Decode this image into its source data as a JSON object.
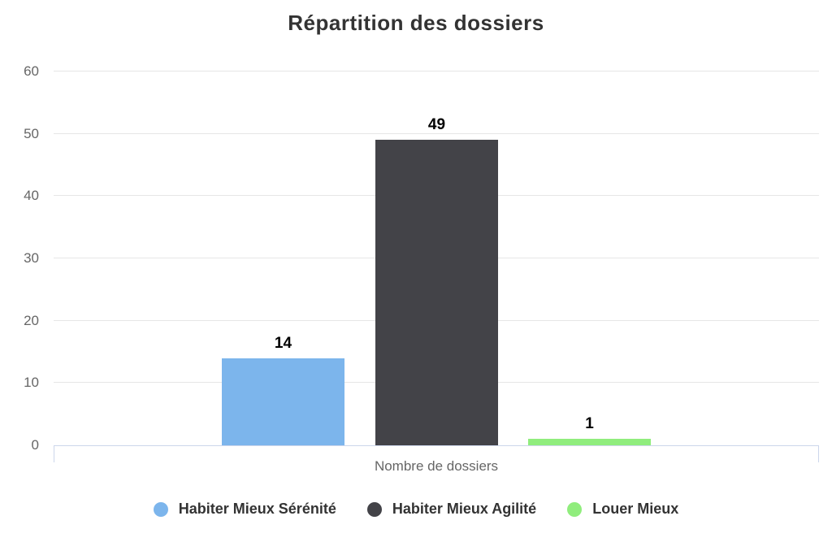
{
  "chart_data": {
    "type": "bar",
    "title": "Répartition des dossiers",
    "categories": [
      "Nombre de dossiers"
    ],
    "xlabel": "Nombre de dossiers",
    "ylabel": "",
    "ylim": [
      0,
      60
    ],
    "yticks": [
      0,
      10,
      20,
      30,
      40,
      50,
      60
    ],
    "grid": true,
    "legend_position": "bottom",
    "series": [
      {
        "name": "Habiter Mieux Sérénité",
        "values": [
          14
        ],
        "color": "#7cb5ec"
      },
      {
        "name": "Habiter Mieux Agilité",
        "values": [
          49
        ],
        "color": "#434348"
      },
      {
        "name": "Louer Mieux",
        "values": [
          1
        ],
        "color": "#90ed7d"
      }
    ]
  },
  "colors": {
    "background": "#ffffff",
    "title_text": "#333333",
    "axis_label_text": "#666666",
    "gridline": "#e6e6e6",
    "axis_line": "#ccd6eb",
    "data_label_text": "#000000",
    "legend_text": "#333333"
  }
}
